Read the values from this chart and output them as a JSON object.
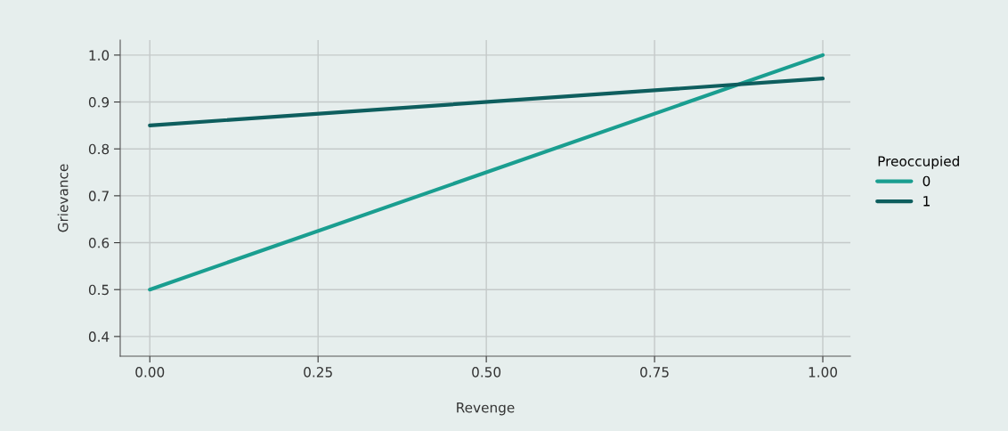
{
  "chart_data": {
    "type": "line",
    "xlabel": "Revenge",
    "ylabel": "Grievance",
    "legend_title": "Preoccupied",
    "legend": "right",
    "x": [
      0,
      1
    ],
    "series": [
      {
        "name": "0",
        "color": "#1a9e90",
        "values": [
          0.5,
          1.0
        ]
      },
      {
        "name": "1",
        "color": "#0e5e5e",
        "values": [
          0.85,
          0.95
        ]
      }
    ],
    "xlim": [
      -0.044,
      1.041
    ],
    "ylim": [
      0.358,
      1.032
    ],
    "xticks": [
      {
        "value": 0,
        "label": "0.00"
      },
      {
        "value": 0.25,
        "label": "0.25"
      },
      {
        "value": 0.5,
        "label": "0.50"
      },
      {
        "value": 0.75,
        "label": "0.75"
      },
      {
        "value": 1,
        "label": "1.00"
      }
    ],
    "yticks": [
      0.4,
      0.5,
      0.6,
      0.7,
      0.8,
      0.9,
      {
        "value": 1,
        "label": "1.0"
      }
    ],
    "grid": true,
    "marker": "none",
    "line_style": "solid"
  }
}
